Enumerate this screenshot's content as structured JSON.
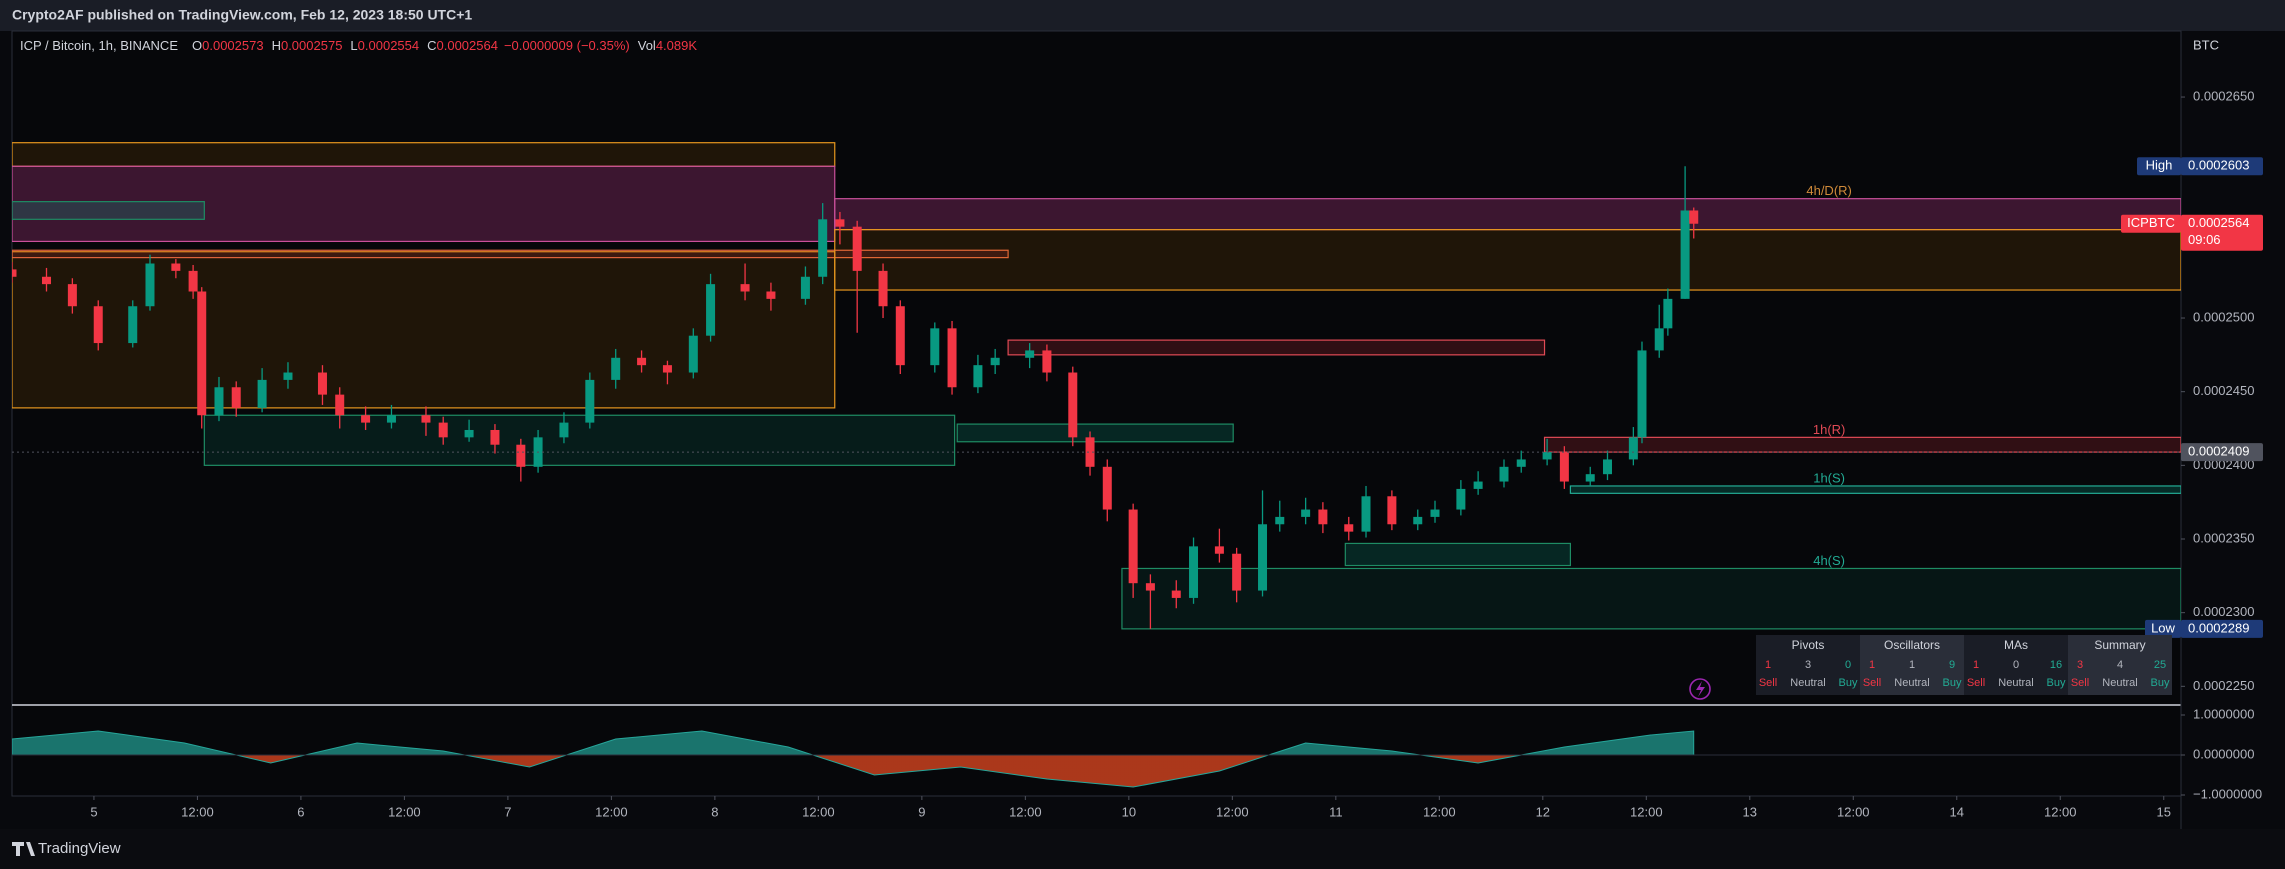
{
  "header": {
    "publisher": "Crypto2AF published on TradingView.com, Feb 12, 2023 18:50 UTC+1"
  },
  "footer": {
    "brand": "TradingView"
  },
  "chart_data": [
    {
      "type": "candlestick",
      "title": "ICP / Bitcoin, 1h, BINANCE",
      "legend": [
        {
          "label": "O",
          "value": "0.0002573"
        },
        {
          "label": "H",
          "value": "0.0002575"
        },
        {
          "label": "L",
          "value": "0.0002554"
        },
        {
          "label": "C",
          "value": "0.0002564"
        },
        {
          "label": "",
          "value": "−0.0000009 (−0.35%)"
        },
        {
          "label": "Vol",
          "value": "4.089K"
        }
      ],
      "y_unit": "BTC",
      "up_color": "#089981",
      "down_color": "#f23645",
      "x": [
        0,
        4,
        7,
        10,
        14,
        16,
        19,
        21,
        22,
        24,
        26,
        29,
        32,
        36,
        38,
        41,
        44,
        48,
        50,
        53,
        56,
        59,
        61,
        64,
        67,
        70,
        73,
        76,
        79,
        81,
        85,
        88,
        92,
        94,
        96,
        98,
        101,
        103,
        107,
        109,
        112,
        114,
        118,
        120,
        123,
        125,
        127,
        130,
        132,
        135,
        137,
        140,
        142,
        145,
        147,
        150,
        152,
        155,
        157,
        160,
        163,
        165,
        168,
        170,
        173,
        175,
        178,
        180,
        183,
        185,
        188,
        189,
        191,
        192,
        194,
        195
      ],
      "open": [
        0.0002533,
        0.0002528,
        0.0002523,
        0.0002508,
        0.0002483,
        0.0002508,
        0.0002537,
        0.0002532,
        0.0002518,
        0.0002434,
        0.0002453,
        0.0002439,
        0.0002458,
        0.0002463,
        0.0002448,
        0.0002434,
        0.0002429,
        0.0002434,
        0.0002429,
        0.0002419,
        0.0002424,
        0.0002414,
        0.0002399,
        0.0002419,
        0.0002429,
        0.0002458,
        0.0002473,
        0.0002468,
        0.0002463,
        0.0002488,
        0.0002523,
        0.0002518,
        0.0002513,
        0.0002528,
        0.0002567,
        0.0002562,
        0.0002532,
        0.0002508,
        0.0002468,
        0.0002493,
        0.0002453,
        0.0002468,
        0.0002473,
        0.0002478,
        0.0002463,
        0.0002419,
        0.0002399,
        0.000237,
        0.000232,
        0.0002315,
        0.000231,
        0.0002345,
        0.000234,
        0.0002315,
        0.000236,
        0.0002365,
        0.000237,
        0.000236,
        0.0002355,
        0.0002379,
        0.000236,
        0.0002365,
        0.000237,
        0.0002384,
        0.0002389,
        0.0002399,
        0.0002404,
        0.0002409,
        0.0002389,
        0.0002394,
        0.0002404,
        0.0002419,
        0.0002478,
        0.0002493,
        0.0002513,
        0.0002573
      ],
      "high": [
        0.0002538,
        0.0002534,
        0.0002527,
        0.0002512,
        0.0002512,
        0.0002543,
        0.000254,
        0.0002536,
        0.0002521,
        0.000246,
        0.0002457,
        0.0002466,
        0.000247,
        0.0002468,
        0.0002453,
        0.000244,
        0.0002441,
        0.000244,
        0.0002433,
        0.0002431,
        0.0002428,
        0.0002418,
        0.0002424,
        0.0002436,
        0.0002463,
        0.0002479,
        0.0002478,
        0.0002471,
        0.0002493,
        0.000253,
        0.0002537,
        0.0002524,
        0.0002535,
        0.0002578,
        0.0002572,
        0.0002566,
        0.0002537,
        0.0002512,
        0.0002497,
        0.0002498,
        0.0002475,
        0.0002479,
        0.0002483,
        0.0002482,
        0.0002467,
        0.0002423,
        0.0002404,
        0.0002374,
        0.0002326,
        0.0002322,
        0.0002351,
        0.0002357,
        0.0002344,
        0.0002383,
        0.0002376,
        0.0002378,
        0.0002375,
        0.0002365,
        0.0002386,
        0.0002383,
        0.000237,
        0.0002376,
        0.000239,
        0.0002396,
        0.0002404,
        0.000241,
        0.0002418,
        0.0002413,
        0.0002399,
        0.000241,
        0.0002426,
        0.0002484,
        0.0002509,
        0.000252,
        0.0002603,
        0.0002575
      ],
      "low": [
        0.0002524,
        0.0002518,
        0.0002503,
        0.0002478,
        0.000248,
        0.0002505,
        0.0002527,
        0.0002513,
        0.0002425,
        0.000243,
        0.0002433,
        0.0002436,
        0.0002452,
        0.0002441,
        0.0002425,
        0.0002424,
        0.0002425,
        0.000242,
        0.0002414,
        0.0002416,
        0.0002408,
        0.0002389,
        0.0002395,
        0.0002415,
        0.0002425,
        0.0002452,
        0.0002463,
        0.0002455,
        0.0002459,
        0.0002484,
        0.0002512,
        0.0002505,
        0.0002509,
        0.0002523,
        0.000255,
        0.000249,
        0.00025,
        0.0002462,
        0.0002463,
        0.0002448,
        0.0002449,
        0.0002462,
        0.0002466,
        0.0002457,
        0.0002413,
        0.0002393,
        0.0002362,
        0.000231,
        0.0002289,
        0.0002303,
        0.0002306,
        0.0002334,
        0.0002307,
        0.0002311,
        0.0002355,
        0.000236,
        0.0002354,
        0.0002349,
        0.0002351,
        0.0002356,
        0.0002356,
        0.0002361,
        0.0002366,
        0.000238,
        0.0002385,
        0.0002395,
        0.00024,
        0.0002384,
        0.0002386,
        0.000239,
        0.00024,
        0.0002415,
        0.0002473,
        0.0002488,
        0.0002513,
        0.0002554
      ],
      "close": [
        0.0002528,
        0.0002523,
        0.0002508,
        0.0002483,
        0.0002508,
        0.0002537,
        0.0002532,
        0.0002518,
        0.0002434,
        0.0002453,
        0.0002439,
        0.0002458,
        0.0002463,
        0.0002448,
        0.0002434,
        0.0002429,
        0.0002434,
        0.0002429,
        0.0002419,
        0.0002424,
        0.0002414,
        0.0002399,
        0.0002419,
        0.0002429,
        0.0002458,
        0.0002473,
        0.0002468,
        0.0002463,
        0.0002488,
        0.0002523,
        0.0002518,
        0.0002513,
        0.0002528,
        0.0002567,
        0.0002562,
        0.0002532,
        0.0002508,
        0.0002468,
        0.0002493,
        0.0002453,
        0.0002468,
        0.0002473,
        0.0002478,
        0.0002463,
        0.0002419,
        0.0002399,
        0.000237,
        0.000232,
        0.0002315,
        0.000231,
        0.0002345,
        0.000234,
        0.0002315,
        0.000236,
        0.0002365,
        0.000237,
        0.000236,
        0.0002355,
        0.0002379,
        0.000236,
        0.0002365,
        0.000237,
        0.0002384,
        0.0002389,
        0.0002399,
        0.0002404,
        0.0002409,
        0.0002389,
        0.0002394,
        0.0002404,
        0.0002419,
        0.0002478,
        0.0002493,
        0.0002513,
        0.0002573,
        0.0002564
      ],
      "xlim": [
        0,
        251.5
      ],
      "xticks": [
        {
          "value": 9.5,
          "label": "5"
        },
        {
          "value": 21.5,
          "label": "12:00"
        },
        {
          "value": 33.5,
          "label": "6"
        },
        {
          "value": 45.5,
          "label": "12:00"
        },
        {
          "value": 57.5,
          "label": "7"
        },
        {
          "value": 69.5,
          "label": "12:00"
        },
        {
          "value": 81.5,
          "label": "8"
        },
        {
          "value": 93.5,
          "label": "12:00"
        },
        {
          "value": 105.5,
          "label": "9"
        },
        {
          "value": 117.5,
          "label": "12:00"
        },
        {
          "value": 129.5,
          "label": "10"
        },
        {
          "value": 141.5,
          "label": "12:00"
        },
        {
          "value": 153.5,
          "label": "11"
        },
        {
          "value": 165.5,
          "label": "12:00"
        },
        {
          "value": 177.5,
          "label": "12"
        },
        {
          "value": 189.5,
          "label": "12:00"
        },
        {
          "value": 201.5,
          "label": "13"
        },
        {
          "value": 213.5,
          "label": "12:00"
        },
        {
          "value": 225.5,
          "label": "14"
        },
        {
          "value": 237.5,
          "label": "12:00"
        },
        {
          "value": 249.5,
          "label": "15"
        }
      ],
      "ylim": [
        0.0002238,
        0.0002686
      ],
      "yticks": [
        {
          "value": 0.000265,
          "label": "0.0002650"
        },
        {
          "value": 0.00025,
          "label": "0.0002500"
        },
        {
          "value": 0.000245,
          "label": "0.0002450"
        },
        {
          "value": 0.00024,
          "label": "0.0002400"
        },
        {
          "value": 0.000235,
          "label": "0.0002350"
        },
        {
          "value": 0.00023,
          "label": "0.0002300"
        },
        {
          "value": 0.000225,
          "label": "0.0002250"
        }
      ],
      "grid": false,
      "zones": [
        {
          "start": 0,
          "end": 95.4,
          "top": 0.0002619,
          "bottom": 0.0002603,
          "fill": "rgba(255,152,0,0.10)",
          "stroke": "#e6961e"
        },
        {
          "start": 0,
          "end": 95.4,
          "top": 0.0002603,
          "bottom": 0.0002552,
          "fill": "rgba(186,60,140,0.30)",
          "stroke": "#c9509a"
        },
        {
          "start": 0,
          "end": 95.4,
          "top": 0.0002545,
          "bottom": 0.0002439,
          "fill": "rgba(255,152,0,0.10)",
          "stroke": "#e6961e"
        },
        {
          "start": 0,
          "end": 115.5,
          "top": 0.0002546,
          "bottom": 0.0002541,
          "fill": "rgba(242,54,69,0.15)",
          "stroke": "#e0643c"
        },
        {
          "start": 0,
          "end": 22.3,
          "top": 0.0002579,
          "bottom": 0.0002567,
          "fill": "rgba(8,153,129,0.25)",
          "stroke": "#1e8c64"
        },
        {
          "start": 95.4,
          "end": 251.5,
          "top": 0.0002581,
          "bottom": 0.000256,
          "fill": "rgba(186,60,140,0.30)",
          "stroke": "#c9509a",
          "label": "4h/D(R)",
          "label_color": "#d08a3a"
        },
        {
          "start": 95.4,
          "end": 251.5,
          "top": 0.000256,
          "bottom": 0.0002519,
          "fill": "rgba(255,152,0,0.10)",
          "stroke": "#e6961e"
        },
        {
          "start": 115.5,
          "end": 177.7,
          "top": 0.0002485,
          "bottom": 0.0002475,
          "fill": "rgba(242,54,69,0.18)",
          "stroke": "#e04a55"
        },
        {
          "start": 177.7,
          "end": 251.5,
          "top": 0.0002419,
          "bottom": 0.0002409,
          "fill": "rgba(242,54,69,0.18)",
          "stroke": "#e04a55",
          "label": "1h(R)",
          "label_color": "#e04a55"
        },
        {
          "start": 180.7,
          "end": 251.5,
          "top": 0.0002386,
          "bottom": 0.0002381,
          "fill": "rgba(8,153,129,0.25)",
          "stroke": "#22ab94",
          "label": "1h(S)",
          "label_color": "#22ab94"
        },
        {
          "start": 128.7,
          "end": 251.5,
          "top": 0.000233,
          "bottom": 0.0002289,
          "fill": "rgba(8,153,129,0.10)",
          "stroke": "#1e8c64",
          "label": "4h(S)",
          "label_color": "#22ab94"
        },
        {
          "start": 22.3,
          "end": 109.3,
          "top": 0.0002434,
          "bottom": 0.00024,
          "fill": "rgba(8,153,129,0.14)",
          "stroke": "#1e8c64"
        },
        {
          "start": 109.6,
          "end": 141.6,
          "top": 0.0002428,
          "bottom": 0.0002416,
          "fill": "rgba(8,153,129,0.22)",
          "stroke": "#1e8c64"
        },
        {
          "start": 154.6,
          "end": 180.7,
          "top": 0.0002347,
          "bottom": 0.0002332,
          "fill": "rgba(8,153,129,0.22)",
          "stroke": "#1e8c64"
        }
      ],
      "price_labels": [
        {
          "tag": "High",
          "value": 0.0002603,
          "color": "#1e3a78"
        },
        {
          "tag": "ICPBTC",
          "value": 0.0002564,
          "sub": "09:06",
          "color": "#f23645"
        },
        {
          "value": 0.0002409,
          "color": "#50535e"
        },
        {
          "tag": "Low",
          "value": 0.0002289,
          "color": "#1e3a78"
        }
      ],
      "ratings": {
        "labels": [
          "Sell",
          "Neutral",
          "Buy"
        ],
        "groups": [
          {
            "title": "Pivots",
            "counts": [
              1,
              3,
              0
            ]
          },
          {
            "title": "Oscillators",
            "counts": [
              1,
              1,
              9
            ]
          },
          {
            "title": "MAs",
            "counts": [
              1,
              0,
              16
            ]
          },
          {
            "title": "Summary",
            "counts": [
              3,
              4,
              25
            ]
          }
        ]
      }
    },
    {
      "type": "area",
      "x": [
        0,
        10,
        20,
        30,
        40,
        50,
        60,
        70,
        80,
        90,
        100,
        110,
        120,
        130,
        140,
        150,
        160,
        170,
        180,
        190,
        195
      ],
      "values": [
        0.4,
        0.6,
        0.3,
        -0.2,
        0.3,
        0.1,
        -0.3,
        0.4,
        0.6,
        0.2,
        -0.5,
        -0.3,
        -0.6,
        -0.8,
        -0.4,
        0.3,
        0.1,
        -0.2,
        0.2,
        0.5,
        0.6
      ],
      "positive_color": "#1f8f86",
      "negative_color": "#c8401e",
      "xlim": [
        0,
        251.5
      ],
      "ylim": [
        -1.05,
        1.2
      ],
      "yticks": [
        {
          "value": 1,
          "label": "1.0000000"
        },
        {
          "value": 0,
          "label": "0.0000000"
        },
        {
          "value": -1,
          "label": "−1.0000000"
        }
      ]
    }
  ]
}
